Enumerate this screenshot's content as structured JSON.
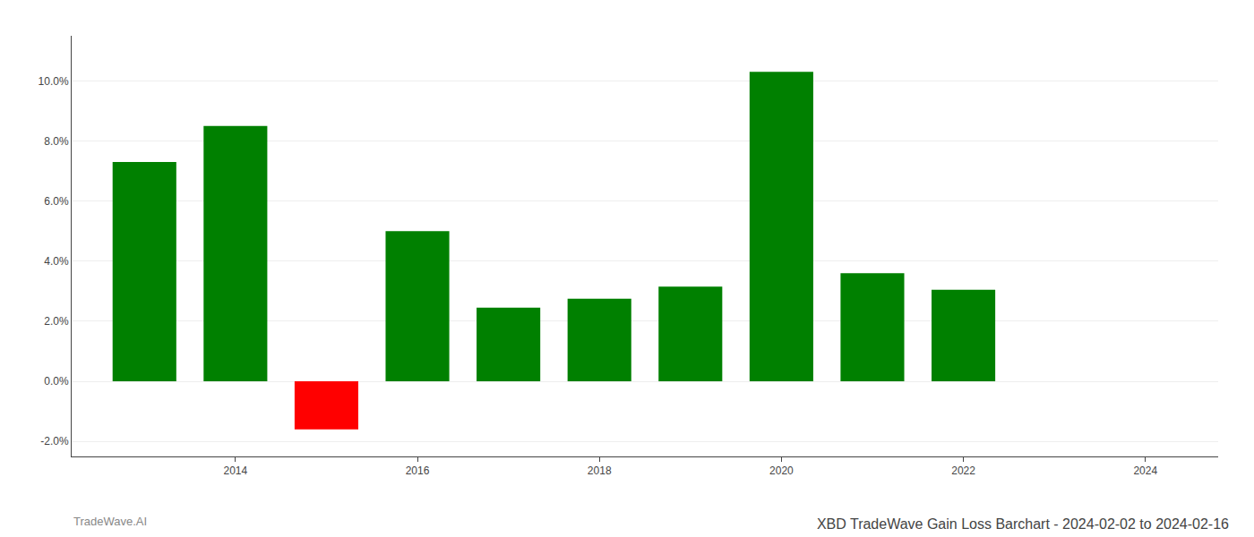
{
  "chart_data": {
    "type": "bar",
    "title": "XBD TradeWave Gain Loss Barchart - 2024-02-02 to 2024-02-16",
    "annotations": [
      "TradeWave.AI"
    ],
    "x": [
      2013,
      2014,
      2015,
      2016,
      2017,
      2018,
      2019,
      2020,
      2021,
      2022
    ],
    "values": [
      0.073,
      0.085,
      -0.016,
      0.05,
      0.0245,
      0.0275,
      0.0315,
      0.103,
      0.036,
      0.0305
    ],
    "colors": [
      "#008000",
      "#008000",
      "#ff0000",
      "#008000",
      "#008000",
      "#008000",
      "#008000",
      "#008000",
      "#008000",
      "#008000"
    ],
    "xlim": [
      2012.2,
      2024.8
    ],
    "xticks": [
      2014,
      2016,
      2018,
      2020,
      2022,
      2024
    ],
    "ylim": [
      -0.025,
      0.115
    ],
    "yticks": [
      {
        "value": -0.02,
        "label": "-2.0%"
      },
      {
        "value": 0.0,
        "label": "0.0%"
      },
      {
        "value": 0.02,
        "label": "2.0%"
      },
      {
        "value": 0.04,
        "label": "4.0%"
      },
      {
        "value": 0.06,
        "label": "6.0%"
      },
      {
        "value": 0.08,
        "label": "8.0%"
      },
      {
        "value": 0.1,
        "label": "10.0%"
      }
    ],
    "grid": true
  }
}
